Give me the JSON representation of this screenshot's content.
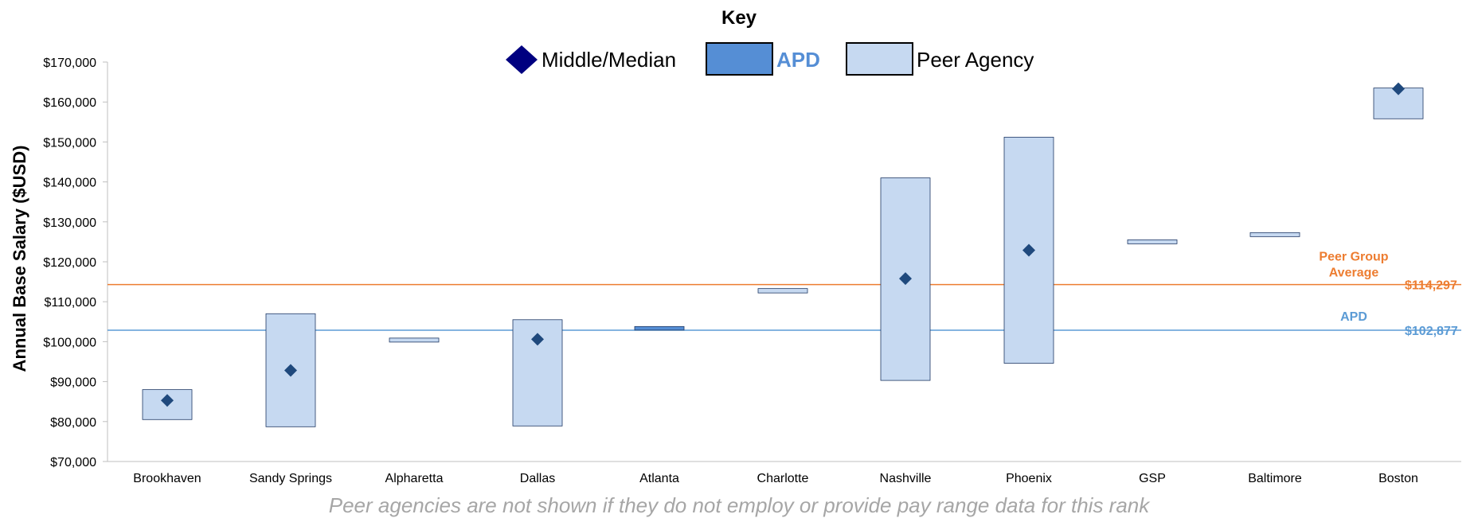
{
  "chart_data": {
    "type": "range",
    "ylabel": "Annual Base Salary ($USD)",
    "ylim": [
      70000,
      170000
    ],
    "yticks": [
      70000,
      80000,
      90000,
      100000,
      110000,
      120000,
      130000,
      140000,
      150000,
      160000,
      170000
    ],
    "ytick_labels": [
      "$70,000",
      "$80,000",
      "$90,000",
      "$100,000",
      "$110,000",
      "$120,000",
      "$130,000",
      "$140,000",
      "$150,000",
      "$160,000",
      "$170,000"
    ],
    "categories": [
      "Brookhaven",
      "Sandy Springs",
      "Alpharetta",
      "Dallas",
      "Atlanta",
      "Charlotte",
      "Nashville",
      "Phoenix",
      "GSP",
      "Baltimore",
      "Boston"
    ],
    "ranges": [
      {
        "min": 80500,
        "max": 88000,
        "median": 85300,
        "group": "peer"
      },
      {
        "min": 78700,
        "max": 107000,
        "median": 92800,
        "group": "peer"
      },
      {
        "min": 99900,
        "max": 100900,
        "median": null,
        "group": "peer"
      },
      {
        "min": 78900,
        "max": 105500,
        "median": 100600,
        "group": "peer"
      },
      {
        "min": 102900,
        "max": 103800,
        "median": null,
        "group": "apd"
      },
      {
        "min": 112200,
        "max": 113300,
        "median": null,
        "group": "peer"
      },
      {
        "min": 90300,
        "max": 141000,
        "median": 115800,
        "group": "peer"
      },
      {
        "min": 94600,
        "max": 151200,
        "median": 122900,
        "group": "peer"
      },
      {
        "min": 124500,
        "max": 125500,
        "median": null,
        "group": "peer"
      },
      {
        "min": 126300,
        "max": 127300,
        "median": null,
        "group": "peer"
      },
      {
        "min": 155800,
        "max": 163500,
        "median": 163300,
        "group": "peer"
      }
    ],
    "reference_lines": [
      {
        "label": "Peer Group Average",
        "value": 114297,
        "value_label": "$114,297",
        "color": "#ed7d31"
      },
      {
        "label": "APD",
        "value": 102877,
        "value_label": "$102,877",
        "color": "#5b9bd5"
      }
    ],
    "key": {
      "title": "Key",
      "items": [
        {
          "label": "Middle/Median",
          "symbol": "diamond",
          "color": "#000080"
        },
        {
          "label": "APD",
          "symbol": "box",
          "color": "#558ed5"
        },
        {
          "label": "Peer Agency",
          "symbol": "box",
          "color": "#c6d9f1"
        }
      ]
    },
    "colors": {
      "peer_fill": "#c6d9f1",
      "apd_fill": "#558ed5",
      "median_marker": "#1f497d",
      "axis": "#bfbfbf"
    },
    "footnote": "Peer agencies are not shown if they do not employ or provide pay range data for this rank"
  }
}
